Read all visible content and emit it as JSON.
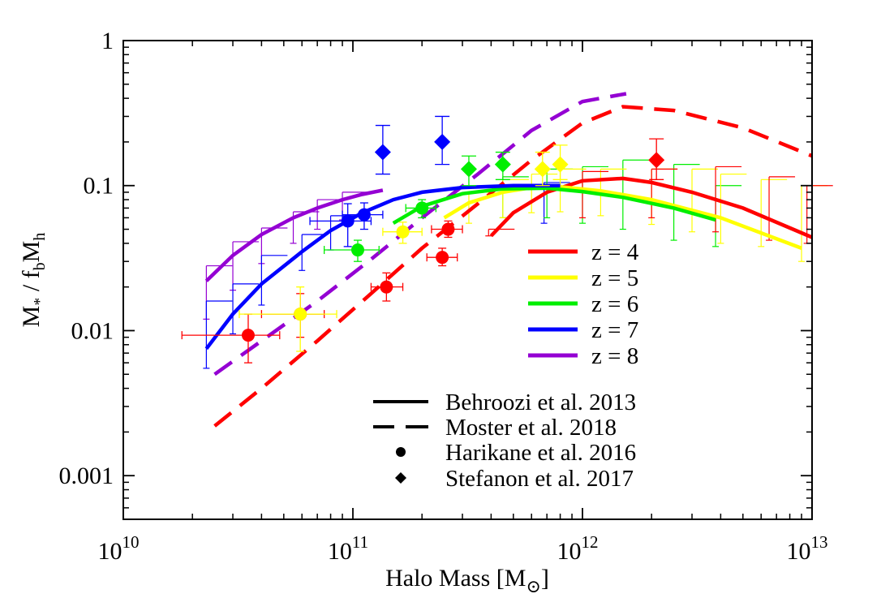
{
  "chart_data": {
    "type": "line",
    "xlabel": "Halo Mass [M",
    "xlabel_symbol": "⊙",
    "xlabel_close": "]",
    "ylabel_parts": [
      "M",
      "*",
      " / f",
      "b",
      "M",
      "h"
    ],
    "xlim": [
      10000000000.0,
      10000000000000.0
    ],
    "ylim": [
      0.0005,
      1
    ],
    "xscale": "log",
    "yscale": "log",
    "x_ticks": [
      {
        "value": 10000000000.0,
        "base": "10",
        "exp": "10"
      },
      {
        "value": 100000000000.0,
        "base": "10",
        "exp": "11"
      },
      {
        "value": 1000000000000.0,
        "base": "10",
        "exp": "12"
      },
      {
        "value": 10000000000000.0,
        "base": "10",
        "exp": "13"
      }
    ],
    "y_ticks": [
      {
        "value": 0.001,
        "label": "0.001"
      },
      {
        "value": 0.01,
        "label": "0.01"
      },
      {
        "value": 0.1,
        "label": "0.1"
      },
      {
        "value": 1,
        "label": "1"
      }
    ],
    "colors": {
      "4": "#ff0000",
      "5": "#ffff00",
      "6": "#00ee00",
      "7": "#0000ff",
      "8": "#9400d3"
    },
    "legend_z": [
      "z = 4",
      "z = 5",
      "z = 6",
      "z = 7",
      "z = 8"
    ],
    "legend_style": [
      "Behroozi et al. 2013",
      "Moster et al. 2018",
      "Harikane et al. 2016",
      "Stefanon et al. 2017"
    ],
    "legend_placement": "bottom-right",
    "behroozi": [
      {
        "z": "4",
        "x": [
          400000000000.0,
          500000000000.0,
          700000000000.0,
          1000000000000.0,
          1500000000000.0,
          2000000000000.0,
          3000000000000.0,
          5000000000000.0,
          10000000000000.0
        ],
        "y": [
          0.045,
          0.065,
          0.09,
          0.108,
          0.112,
          0.105,
          0.09,
          0.07,
          0.044
        ]
      },
      {
        "z": "5",
        "x": [
          250000000000.0,
          320000000000.0,
          450000000000.0,
          600000000000.0,
          800000000000.0,
          1200000000000.0,
          2000000000000.0,
          4000000000000.0,
          9000000000000.0
        ],
        "y": [
          0.06,
          0.076,
          0.09,
          0.097,
          0.098,
          0.092,
          0.08,
          0.06,
          0.037
        ]
      },
      {
        "z": "6",
        "x": [
          150000000000.0,
          200000000000.0,
          300000000000.0,
          450000000000.0,
          700000000000.0,
          1000000000000.0,
          1500000000000.0,
          2500000000000.0,
          3800000000000.0
        ],
        "y": [
          0.055,
          0.072,
          0.088,
          0.095,
          0.096,
          0.091,
          0.083,
          0.07,
          0.058
        ]
      },
      {
        "z": "7",
        "x": [
          23000000000.0,
          30000000000.0,
          40000000000.0,
          60000000000.0,
          80000000000.0,
          110000000000.0,
          150000000000.0,
          200000000000.0,
          300000000000.0,
          500000000000.0,
          800000000000.0
        ],
        "y": [
          0.0075,
          0.013,
          0.021,
          0.035,
          0.049,
          0.065,
          0.08,
          0.09,
          0.097,
          0.1,
          0.1
        ]
      },
      {
        "z": "8",
        "x": [
          23000000000.0,
          30000000000.0,
          40000000000.0,
          55000000000.0,
          70000000000.0,
          90000000000.0,
          110000000000.0,
          135000000000.0
        ],
        "y": [
          0.022,
          0.033,
          0.046,
          0.06,
          0.07,
          0.08,
          0.087,
          0.093
        ]
      }
    ],
    "moster": [
      {
        "z": "4",
        "x": [
          25000000000.0,
          40000000000.0,
          70000000000.0,
          120000000000.0,
          200000000000.0,
          350000000000.0,
          600000000000.0,
          1000000000000.0,
          1500000000000.0,
          2500000000000.0,
          5000000000000.0,
          10000000000000.0
        ],
        "y": [
          0.0022,
          0.004,
          0.0085,
          0.018,
          0.037,
          0.075,
          0.15,
          0.27,
          0.35,
          0.33,
          0.25,
          0.16
        ]
      },
      {
        "z": "8",
        "x": [
          25000000000.0,
          40000000000.0,
          70000000000.0,
          120000000000.0,
          200000000000.0,
          350000000000.0,
          600000000000.0,
          1000000000000.0,
          1550000000000.0
        ],
        "y": [
          0.005,
          0.0085,
          0.016,
          0.031,
          0.06,
          0.12,
          0.24,
          0.38,
          0.43
        ]
      }
    ],
    "harikane": [
      {
        "z": "4",
        "x": 35000000000.0,
        "y": 0.0093,
        "xlo": 18000000000.0,
        "xhi": 48000000000.0,
        "ylo": 0.006,
        "yhi": 0.013
      },
      {
        "z": "4",
        "x": 59000000000.0,
        "y": 0.013,
        "xlo": 40000000000.0,
        "xhi": 75000000000.0,
        "ylo": 0.009,
        "yhi": 0.018
      },
      {
        "z": "4",
        "x": 140000000000.0,
        "y": 0.02,
        "xlo": 120000000000.0,
        "xhi": 165000000000.0,
        "ylo": 0.016,
        "yhi": 0.025
      },
      {
        "z": "4",
        "x": 245000000000.0,
        "y": 0.032,
        "xlo": 210000000000.0,
        "xhi": 285000000000.0,
        "ylo": 0.028,
        "yhi": 0.037
      },
      {
        "z": "4",
        "x": 260000000000.0,
        "y": 0.05,
        "xlo": 220000000000.0,
        "xhi": 300000000000.0,
        "ylo": 0.044,
        "yhi": 0.057
      },
      {
        "z": "5",
        "x": 59000000000.0,
        "y": 0.013,
        "xlo": 32000000000.0,
        "xhi": 85000000000.0,
        "ylo": 0.0072,
        "yhi": 0.02
      },
      {
        "z": "5",
        "x": 165000000000.0,
        "y": 0.048,
        "xlo": 135000000000.0,
        "xhi": 200000000000.0,
        "ylo": 0.04,
        "yhi": 0.056
      },
      {
        "z": "6",
        "x": 105000000000.0,
        "y": 0.036,
        "xlo": 75000000000.0,
        "xhi": 130000000000.0,
        "ylo": 0.03,
        "yhi": 0.042
      },
      {
        "z": "6",
        "x": 200000000000.0,
        "y": 0.07,
        "xlo": 170000000000.0,
        "xhi": 230000000000.0,
        "ylo": 0.06,
        "yhi": 0.08
      },
      {
        "z": "7",
        "x": 95000000000.0,
        "y": 0.057,
        "xlo": 65000000000.0,
        "xhi": 120000000000.0,
        "ylo": 0.038,
        "yhi": 0.075
      },
      {
        "z": "7",
        "x": 112000000000.0,
        "y": 0.063,
        "xlo": 90000000000.0,
        "xhi": 135000000000.0,
        "ylo": 0.05,
        "yhi": 0.076
      }
    ],
    "stefanon": [
      {
        "z": "7",
        "x": 135000000000.0,
        "y": 0.17,
        "xlo": 135000000000.0,
        "xhi": 135000000000.0,
        "ylo": 0.12,
        "yhi": 0.26
      },
      {
        "z": "7",
        "x": 245000000000.0,
        "y": 0.2,
        "xlo": 245000000000.0,
        "xhi": 245000000000.0,
        "ylo": 0.14,
        "yhi": 0.3
      },
      {
        "z": "6",
        "x": 320000000000.0,
        "y": 0.13,
        "xlo": 320000000000.0,
        "xhi": 320000000000.0,
        "ylo": 0.1,
        "yhi": 0.16
      },
      {
        "z": "6",
        "x": 450000000000.0,
        "y": 0.14,
        "xlo": 450000000000.0,
        "xhi": 450000000000.0,
        "ylo": 0.11,
        "yhi": 0.17
      },
      {
        "z": "5",
        "x": 670000000000.0,
        "y": 0.13,
        "xlo": 670000000000.0,
        "xhi": 670000000000.0,
        "ylo": 0.1,
        "yhi": 0.17
      },
      {
        "z": "5",
        "x": 800000000000.0,
        "y": 0.14,
        "xlo": 800000000000.0,
        "xhi": 800000000000.0,
        "ylo": 0.11,
        "yhi": 0.19
      },
      {
        "z": "4",
        "x": 2100000000000.0,
        "y": 0.15,
        "xlo": 2100000000000.0,
        "xhi": 2100000000000.0,
        "ylo": 0.11,
        "yhi": 0.21
      }
    ],
    "behroozi_errorbars": [
      {
        "z": "8",
        "x": [
          23000000000.0,
          30000000000.0,
          40000000000.0,
          55000000000.0,
          70000000000.0,
          90000000000.0
        ],
        "y": [
          0.022,
          0.033,
          0.046,
          0.06,
          0.07,
          0.08
        ],
        "ylo": [
          0.012,
          0.019,
          0.029,
          0.04,
          0.05,
          0.058
        ],
        "yhi": [
          0.028,
          0.041,
          0.051,
          0.066,
          0.08,
          0.09
        ]
      },
      {
        "z": "7",
        "x": [
          23000000000.0,
          30000000000.0,
          40000000000.0,
          60000000000.0,
          80000000000.0
        ],
        "y": [
          0.0075,
          0.013,
          0.021,
          0.035,
          0.049
        ],
        "ylo": [
          0.0055,
          0.0095,
          0.015,
          0.026,
          0.036
        ],
        "yhi": [
          0.016,
          0.021,
          0.033,
          0.046,
          0.062
        ]
      },
      {
        "z": "7",
        "x": [
          680000000000.0
        ],
        "y": [
          0.1
        ],
        "ylo": [
          0.055
        ],
        "yhi": [
          0.105
        ]
      },
      {
        "z": "6",
        "x": [
          450000000000.0,
          700000000000.0,
          1000000000000.0,
          1500000000000.0,
          2500000000000.0,
          3800000000000.0
        ],
        "y": [
          0.095,
          0.096,
          0.091,
          0.083,
          0.07,
          0.058
        ],
        "ylo": [
          0.06,
          0.06,
          0.055,
          0.05,
          0.042,
          0.038
        ],
        "yhi": [
          0.115,
          0.13,
          0.135,
          0.15,
          0.14,
          0.1
        ]
      },
      {
        "z": "5",
        "x": [
          320000000000.0,
          450000000000.0,
          600000000000.0,
          800000000000.0,
          1200000000000.0,
          2000000000000.0,
          3000000000000.0,
          4000000000000.0,
          6000000000000.0,
          9000000000000.0
        ],
        "y": [
          0.076,
          0.09,
          0.097,
          0.098,
          0.092,
          0.08,
          0.072,
          0.06,
          0.048,
          0.037
        ],
        "ylo": [
          0.055,
          0.06,
          0.065,
          0.066,
          0.062,
          0.054,
          0.048,
          0.04,
          0.038,
          0.03
        ],
        "yhi": [
          0.09,
          0.11,
          0.12,
          0.13,
          0.13,
          0.13,
          0.13,
          0.12,
          0.11,
          0.1
        ]
      },
      {
        "z": "4",
        "x": [
          390000000000.0,
          1000000000000.0,
          2000000000000.0,
          3800000000000.0,
          6500000000000.0,
          9500000000000.0
        ],
        "y": [
          0.045,
          0.108,
          0.105,
          0.075,
          0.06,
          0.045
        ],
        "ylo": [
          0.045,
          0.06,
          0.06,
          0.048,
          0.042,
          0.04
        ],
        "yhi": [
          0.05,
          0.125,
          0.13,
          0.135,
          0.115,
          0.1
        ]
      }
    ]
  }
}
